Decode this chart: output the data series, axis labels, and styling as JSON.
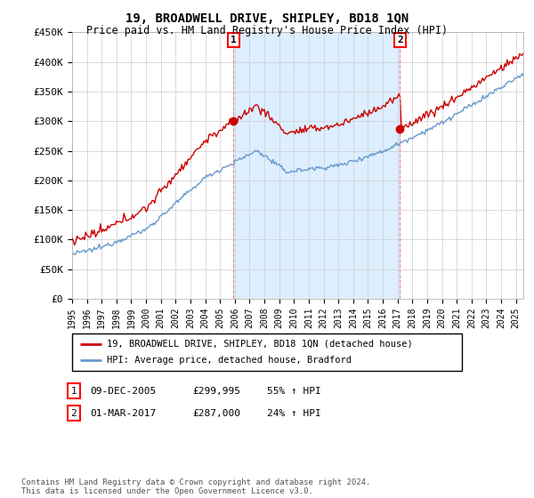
{
  "title": "19, BROADWELL DRIVE, SHIPLEY, BD18 1QN",
  "subtitle": "Price paid vs. HM Land Registry's House Price Index (HPI)",
  "ylim": [
    0,
    450000
  ],
  "yticks": [
    0,
    50000,
    100000,
    150000,
    200000,
    250000,
    300000,
    350000,
    400000,
    450000
  ],
  "ytick_labels": [
    "£0",
    "£50K",
    "£100K",
    "£150K",
    "£200K",
    "£250K",
    "£300K",
    "£350K",
    "£400K",
    "£450K"
  ],
  "xlim_start": 1995.0,
  "xlim_end": 2025.5,
  "line1_color": "#cc0000",
  "line2_color": "#6699cc",
  "fill_color": "#ddeeff",
  "legend_line1": "19, BROADWELL DRIVE, SHIPLEY, BD18 1QN (detached house)",
  "legend_line2": "HPI: Average price, detached house, Bradford",
  "sale1_label": "1",
  "sale1_date": "09-DEC-2005",
  "sale1_price": "£299,995",
  "sale1_pct": "55% ↑ HPI",
  "sale1_x": 2005.917,
  "sale1_y": 299995,
  "sale2_label": "2",
  "sale2_date": "01-MAR-2017",
  "sale2_price": "£287,000",
  "sale2_pct": "24% ↑ HPI",
  "sale2_x": 2017.167,
  "sale2_y": 287000,
  "footer": "Contains HM Land Registry data © Crown copyright and database right 2024.\nThis data is licensed under the Open Government Licence v3.0.",
  "background_color": "#ffffff",
  "grid_color": "#cccccc"
}
